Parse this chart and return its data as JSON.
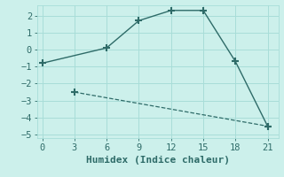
{
  "xlabel": "Humidex (Indice chaleur)",
  "bg_color": "#ccf0eb",
  "line_color": "#2e6b68",
  "line1_x": [
    0,
    6,
    9,
    12,
    15,
    18,
    21
  ],
  "line1_y": [
    -0.8,
    0.1,
    1.7,
    2.3,
    2.3,
    -0.7,
    -4.5
  ],
  "line2_x": [
    3,
    21
  ],
  "line2_y": [
    -2.5,
    -4.5
  ],
  "xlim": [
    -0.5,
    22
  ],
  "ylim": [
    -5.2,
    2.6
  ],
  "xticks": [
    0,
    3,
    6,
    9,
    12,
    15,
    18,
    21
  ],
  "yticks": [
    -5,
    -4,
    -3,
    -2,
    -1,
    0,
    1,
    2
  ],
  "grid_color": "#a8ddd8",
  "marker": "+",
  "marker_size": 6,
  "tick_fontsize": 7.5,
  "xlabel_fontsize": 8
}
